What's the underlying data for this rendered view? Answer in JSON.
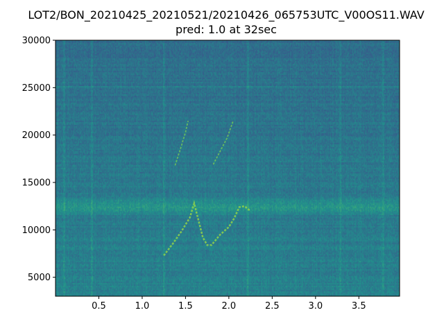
{
  "chart_data": {
    "type": "heatmap",
    "title": "LOT2/BON_20210425_20210521/20210426_065753UTC_V00OS11.WAV",
    "subtitle": "pred: 1.0 at 32sec",
    "xlabel": "",
    "ylabel": "",
    "xlim": [
      0,
      3.97
    ],
    "ylim": [
      3000,
      30000
    ],
    "x_ticks": [
      "0.5",
      "1.0",
      "1.5",
      "2.0",
      "2.5",
      "3.0",
      "3.5"
    ],
    "x_tick_values": [
      0.5,
      1.0,
      1.5,
      2.0,
      2.5,
      3.0,
      3.5
    ],
    "y_ticks": [
      "5000",
      "10000",
      "15000",
      "20000",
      "25000",
      "30000"
    ],
    "y_tick_values": [
      5000,
      10000,
      15000,
      20000,
      25000,
      30000
    ],
    "colormap": "viridis",
    "grid": false,
    "features": {
      "horizontal_band_hz": [
        11500,
        13500
      ],
      "horizontal_line_hz": 25200,
      "vertical_stripes_sec": [
        0.1,
        0.42,
        1.25,
        2.22,
        3.28,
        3.78
      ],
      "traces": [
        {
          "points": [
            [
              1.25,
              7300
            ],
            [
              1.35,
              8500
            ],
            [
              1.45,
              9800
            ],
            [
              1.55,
              11300
            ],
            [
              1.6,
              12800
            ],
            [
              1.65,
              11000
            ],
            [
              1.7,
              9200
            ],
            [
              1.75,
              8400
            ],
            [
              1.8,
              8400
            ],
            [
              1.9,
              9500
            ],
            [
              2.0,
              10300
            ],
            [
              2.06,
              11200
            ],
            [
              2.12,
              12400
            ],
            [
              2.18,
              12500
            ],
            [
              2.25,
              12000
            ]
          ]
        },
        {
          "points": [
            [
              1.38,
              16800
            ],
            [
              1.44,
              18500
            ],
            [
              1.5,
              20300
            ],
            [
              1.53,
              21500
            ]
          ]
        },
        {
          "points": [
            [
              1.82,
              16900
            ],
            [
              1.9,
              18300
            ],
            [
              1.98,
              19700
            ],
            [
              2.05,
              21500
            ]
          ]
        }
      ]
    }
  }
}
